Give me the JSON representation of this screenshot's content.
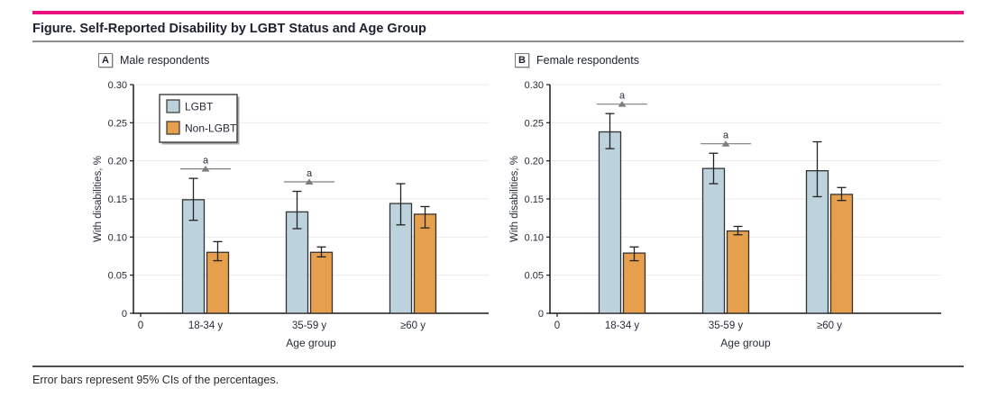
{
  "figure": {
    "title": "Figure. Self-Reported Disability by LGBT Status and Age Group",
    "footnote": "Error bars represent 95% CIs of the percentages."
  },
  "colors": {
    "accent_pink": "#E9117D",
    "lgbt_fill": "#BCD2DD",
    "non_lgbt_fill": "#E69F4D",
    "bar_border": "#333333",
    "error_bar": "#222222",
    "grid": "#EBEBEB",
    "axis": "#1A1A1A",
    "sig_marker": "#7D7D7D"
  },
  "chart_data": [
    {
      "type": "bar",
      "panel_label": "A",
      "panel_title": "Male respondents",
      "categories": [
        "18-34 y",
        "35-59 y",
        "≥60 y"
      ],
      "xlabel": "Age group",
      "ylabel": "With disabilities, %",
      "ylim": [
        0,
        0.3
      ],
      "yticks": [
        {
          "value": 0,
          "label": "0"
        },
        {
          "value": 0.05,
          "label": "0.05"
        },
        {
          "value": 0.1,
          "label": "0.10"
        },
        {
          "value": 0.15,
          "label": "0.15"
        },
        {
          "value": 0.2,
          "label": "0.20"
        },
        {
          "value": 0.25,
          "label": "0.25"
        },
        {
          "value": 0.3,
          "label": "0.30"
        }
      ],
      "x_origin_label": "0",
      "grid": true,
      "show_legend": true,
      "legend_position": "upper-left",
      "series": [
        {
          "name": "LGBT",
          "color": "#BCD2DD",
          "values": [
            0.149,
            0.133,
            0.144
          ],
          "ci_low": [
            0.122,
            0.111,
            0.116
          ],
          "ci_high": [
            0.177,
            0.16,
            0.17
          ]
        },
        {
          "name": "Non-LGBT",
          "color": "#E69F4D",
          "values": [
            0.08,
            0.08,
            0.13
          ],
          "ci_low": [
            0.069,
            0.074,
            0.112
          ],
          "ci_high": [
            0.094,
            0.087,
            0.14
          ]
        }
      ],
      "sig_markers": [
        {
          "group_index": 0,
          "label": "a"
        },
        {
          "group_index": 1,
          "label": "a"
        }
      ]
    },
    {
      "type": "bar",
      "panel_label": "B",
      "panel_title": "Female respondents",
      "categories": [
        "18-34 y",
        "35-59 y",
        "≥60 y"
      ],
      "xlabel": "Age group",
      "ylabel": "With disabilities, %",
      "ylim": [
        0,
        0.3
      ],
      "yticks": [
        {
          "value": 0,
          "label": "0"
        },
        {
          "value": 0.05,
          "label": "0.05"
        },
        {
          "value": 0.1,
          "label": "0.10"
        },
        {
          "value": 0.15,
          "label": "0.15"
        },
        {
          "value": 0.2,
          "label": "0.20"
        },
        {
          "value": 0.25,
          "label": "0.25"
        },
        {
          "value": 0.3,
          "label": "0.30"
        }
      ],
      "x_origin_label": "0",
      "grid": true,
      "show_legend": false,
      "series": [
        {
          "name": "LGBT",
          "color": "#BCD2DD",
          "values": [
            0.238,
            0.19,
            0.187
          ],
          "ci_low": [
            0.216,
            0.17,
            0.153
          ],
          "ci_high": [
            0.262,
            0.21,
            0.225
          ]
        },
        {
          "name": "Non-LGBT",
          "color": "#E69F4D",
          "values": [
            0.079,
            0.108,
            0.156
          ],
          "ci_low": [
            0.069,
            0.103,
            0.148
          ],
          "ci_high": [
            0.087,
            0.114,
            0.165
          ]
        }
      ],
      "sig_markers": [
        {
          "group_index": 0,
          "label": "a"
        },
        {
          "group_index": 1,
          "label": "a"
        }
      ]
    }
  ]
}
